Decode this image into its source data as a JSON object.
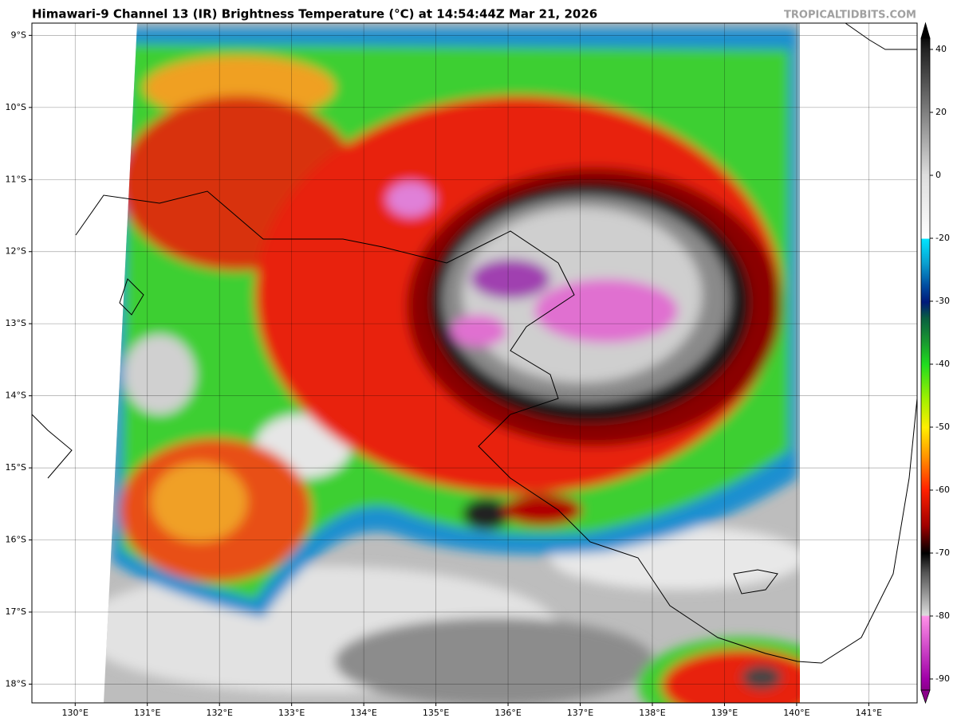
{
  "title": "Himawari-9 Channel 13 (IR) Brightness Temperature (°C) at 14:54:44Z Mar 21, 2026",
  "watermark": "TROPICALTIDBITS.COM",
  "map": {
    "xlim": [
      129.4,
      141.67
    ],
    "ylim": [
      -18.26,
      -8.83
    ],
    "xticks": [
      {
        "value": 130,
        "label": "130°E"
      },
      {
        "value": 131,
        "label": "131°E"
      },
      {
        "value": 132,
        "label": "132°E"
      },
      {
        "value": 133,
        "label": "133°E"
      },
      {
        "value": 134,
        "label": "134°E"
      },
      {
        "value": 135,
        "label": "135°E"
      },
      {
        "value": 136,
        "label": "136°E"
      },
      {
        "value": 137,
        "label": "137°E"
      },
      {
        "value": 138,
        "label": "138°E"
      },
      {
        "value": 139,
        "label": "139°E"
      },
      {
        "value": 140,
        "label": "140°E"
      },
      {
        "value": 141,
        "label": "141°E"
      }
    ],
    "yticks": [
      {
        "value": -9,
        "label": "9°S"
      },
      {
        "value": -10,
        "label": "10°S"
      },
      {
        "value": -11,
        "label": "11°S"
      },
      {
        "value": -12,
        "label": "12°S"
      },
      {
        "value": -13,
        "label": "13°S"
      },
      {
        "value": -14,
        "label": "14°S"
      },
      {
        "value": -15,
        "label": "15°S"
      },
      {
        "value": -16,
        "label": "16°S"
      },
      {
        "value": -17,
        "label": "17°S"
      },
      {
        "value": -18,
        "label": "18°S"
      }
    ]
  },
  "colorbar": {
    "ticks": [
      40,
      20,
      0,
      -20,
      -30,
      -40,
      -50,
      -60,
      -70,
      -80,
      -90
    ]
  }
}
